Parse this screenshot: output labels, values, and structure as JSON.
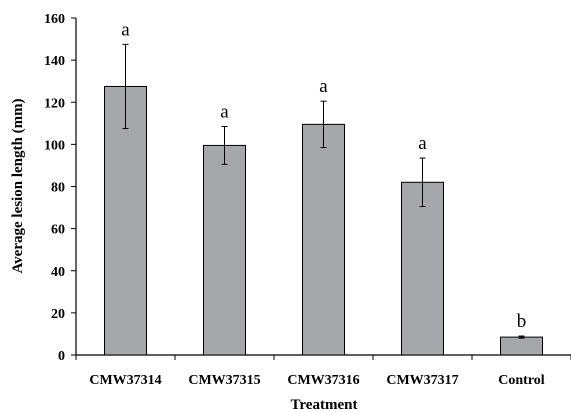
{
  "chart_data": {
    "type": "bar",
    "title": "",
    "xlabel": "Treatment",
    "ylabel": "Average lesion length (mm)",
    "ylim": [
      0,
      160
    ],
    "yticks": [
      0,
      20,
      40,
      60,
      80,
      100,
      120,
      140,
      160
    ],
    "grid": false,
    "categories": [
      "CMW37314",
      "CMW37315",
      "CMW37316",
      "CMW37317",
      "Control"
    ],
    "series": [
      {
        "values": [
          127.5,
          99.5,
          109.5,
          82,
          8.5
        ],
        "error": [
          20,
          9,
          11,
          11.5,
          0.5
        ],
        "significance": [
          "a",
          "a",
          "a",
          "a",
          "b"
        ]
      }
    ],
    "colors": {
      "bar_fill": "#a6a7ab",
      "axis": "#000000"
    }
  }
}
